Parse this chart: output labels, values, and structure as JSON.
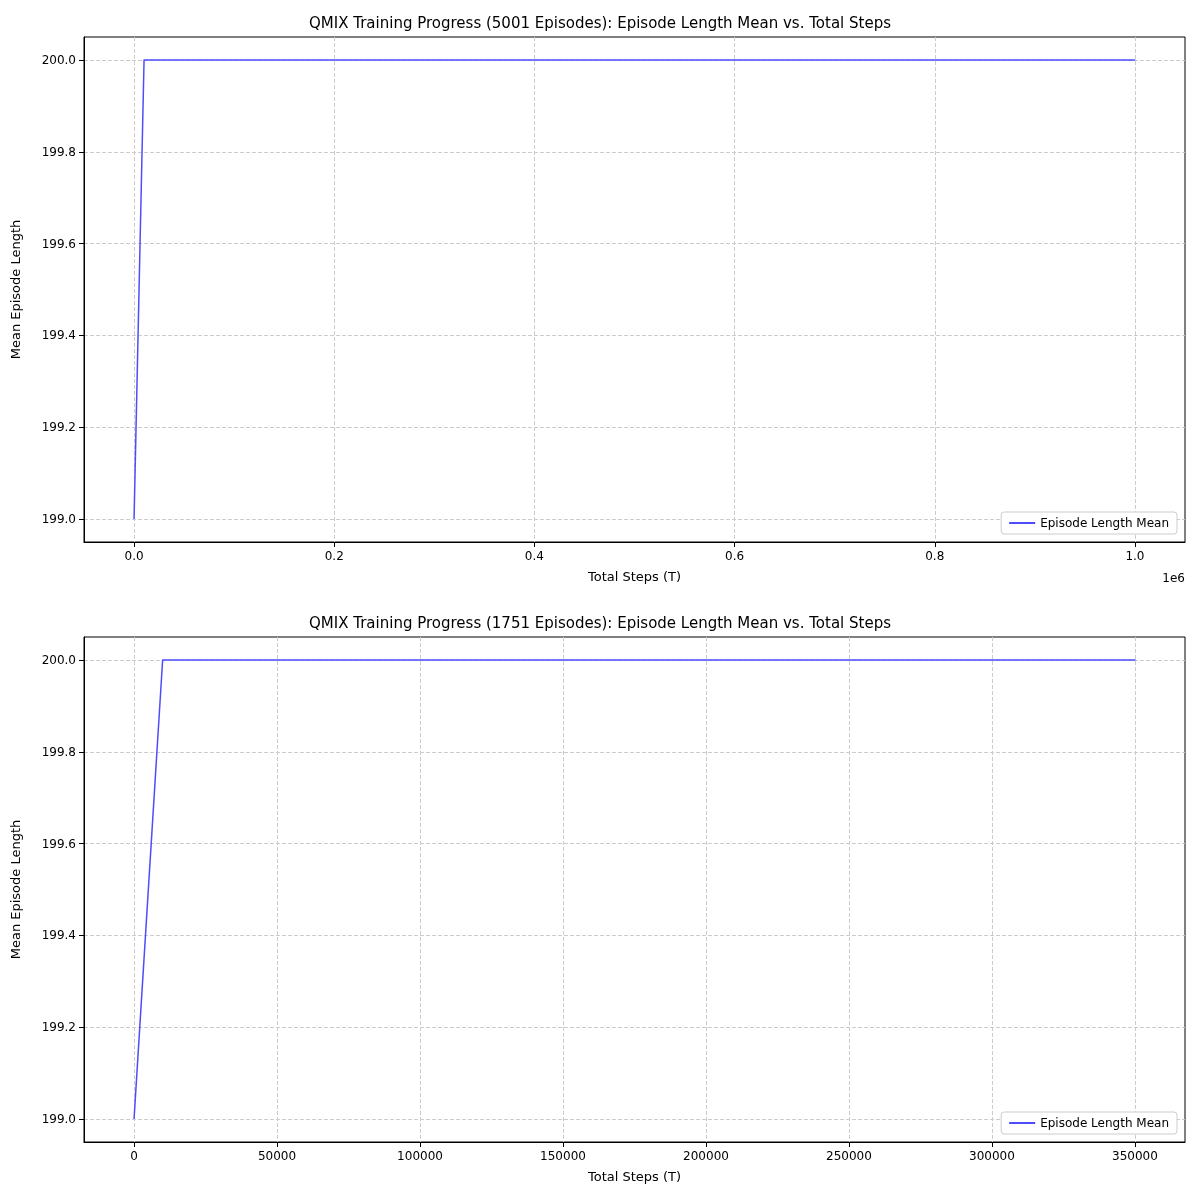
{
  "chart_data": [
    {
      "type": "line",
      "title": "QMIX Training Progress (5001 Episodes): Episode Length Mean vs. Total Steps",
      "xlabel": "Total Steps (T)",
      "ylabel": "Mean Episode Length",
      "series": [
        {
          "name": "Episode Length Mean",
          "color": "#4d4dff",
          "x": [
            0,
            0.01,
            1.0002
          ],
          "values": [
            199.0,
            200.0,
            200.0
          ]
        }
      ],
      "xlim": [
        -0.05,
        1.05
      ],
      "xticks": [
        {
          "value": 0,
          "label": "0.0"
        },
        0.2,
        0.4,
        0.6,
        0.8,
        {
          "value": 1,
          "label": "1.0"
        }
      ],
      "ylim": [
        198.95,
        200.05
      ],
      "yticks": [
        {
          "value": 199,
          "label": "199.0"
        },
        {
          "value": 199.2,
          "label": "199.2"
        },
        {
          "value": 199.4,
          "label": "199.4"
        },
        {
          "value": 199.6,
          "label": "199.6"
        },
        {
          "value": 199.8,
          "label": "199.8"
        },
        {
          "value": 200,
          "label": "200.0"
        }
      ],
      "annotations": [
        "1e6"
      ],
      "grid": true,
      "legend": "bottom right",
      "line_style": "solid",
      "marker": "none"
    },
    {
      "type": "line",
      "title": "QMIX Training Progress (1751 Episodes): Episode Length Mean vs. Total Steps",
      "xlabel": "Total Steps (T)",
      "ylabel": "Mean Episode Length",
      "series": [
        {
          "name": "Episode Length Mean",
          "color": "#4d4dff",
          "x": [
            0,
            10000,
            350200
          ],
          "values": [
            199.0,
            200.0,
            200.0
          ]
        }
      ],
      "xlim": [
        -17500,
        367500
      ],
      "xticks": [
        0,
        50000,
        100000,
        150000,
        200000,
        250000,
        300000,
        350000
      ],
      "ylim": [
        198.95,
        200.05
      ],
      "yticks": [
        {
          "value": 199,
          "label": "199.0"
        },
        {
          "value": 199.2,
          "label": "199.2"
        },
        {
          "value": 199.4,
          "label": "199.4"
        },
        {
          "value": 199.6,
          "label": "199.6"
        },
        {
          "value": 199.8,
          "label": "199.8"
        },
        {
          "value": 200,
          "label": "200.0"
        }
      ],
      "grid": true,
      "legend": "bottom right",
      "line_style": "solid",
      "marker": "none"
    }
  ]
}
